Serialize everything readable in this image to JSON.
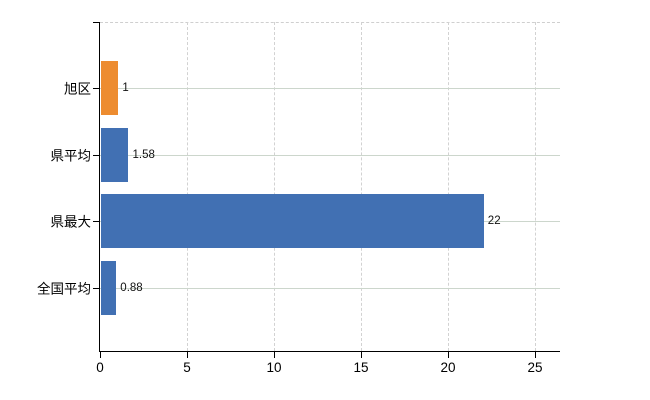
{
  "chart_data": {
    "type": "bar",
    "orientation": "horizontal",
    "title": "",
    "xlabel": "",
    "ylabel": "",
    "categories": [
      "旭区",
      "県平均",
      "県最大",
      "全国平均"
    ],
    "values": [
      1,
      1.58,
      22,
      0.88
    ],
    "value_labels": [
      "1",
      "1.58",
      "22",
      "0.88"
    ],
    "bar_colors": [
      "#ED8C30",
      "#4170B3",
      "#4170B3",
      "#4170B3"
    ],
    "x_ticks": [
      0,
      5,
      10,
      15,
      20,
      25
    ],
    "x_tick_labels": [
      "0",
      "5",
      "10",
      "15",
      "20",
      "25"
    ],
    "xlim": [
      0,
      26.4
    ],
    "grid": true,
    "legend": false,
    "colors": {
      "bar_orange": "#ED8C30",
      "bar_blue": "#4170B3",
      "axis": "#000000",
      "gridline_vertical": "#d2d2d2",
      "gridline_horizontal": "#ccd6cc",
      "plot_border": "#cfcfcf",
      "background": "#ffffff",
      "text": "#000000"
    }
  }
}
